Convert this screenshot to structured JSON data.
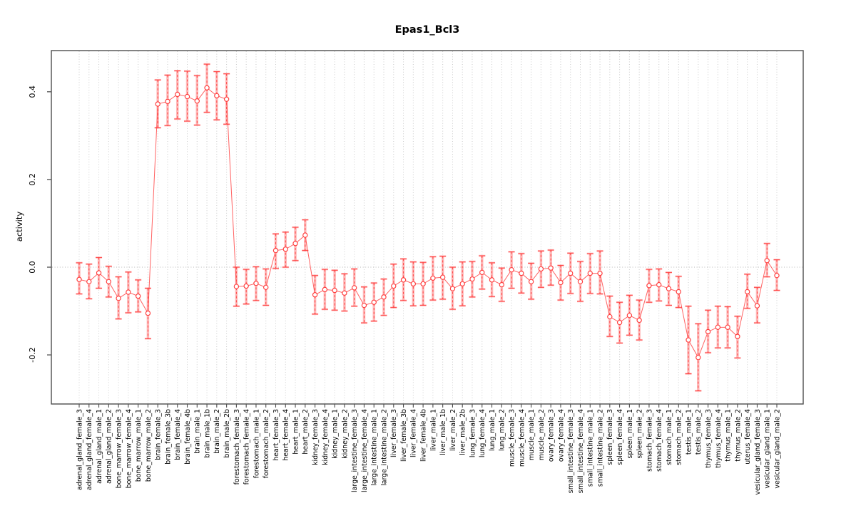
{
  "figure": {
    "title": "Epas1_Bcl3",
    "ylabel": "activity"
  },
  "chart_data": {
    "type": "line",
    "title": "Epas1_Bcl3",
    "xlabel": "",
    "ylabel": "activity",
    "ylim": [
      -0.313,
      0.493
    ],
    "yticks": [
      -0.2,
      0.0,
      0.2,
      0.4
    ],
    "ytick_labels": [
      "-0.2",
      "0.0",
      "0.2",
      "0.4"
    ],
    "grid": "vertical dotted line per category; horizontal dotted line at y=0",
    "legend_position": "none",
    "marker": "open-circle",
    "error_bars": true,
    "colors": {
      "series": "#ff3b3b",
      "error_bar_band": "rgba(255,128,128,0.55)",
      "grid": "#cccccc",
      "zero_line": "#b5b5b5",
      "axis": "#4d4d4d",
      "text": "#000000",
      "background": "#ffffff"
    },
    "categories": [
      "adrenal_gland_female_3",
      "adrenal_gland_female_4",
      "adrenal_gland_male_1",
      "adrenal_gland_male_2",
      "bone_marrow_female_3",
      "bone_marrow_female_4",
      "bone_marrow_male_1",
      "bone_marrow_male_2",
      "brain_female_3",
      "brain_female_3b",
      "brain_female_4",
      "brain_female_4b",
      "brain_male_1",
      "brain_male_1b",
      "brain_male_2",
      "brain_male_2b",
      "forestomach_female_3",
      "forestomach_female_4",
      "forestomach_male_1",
      "forestomach_male_2",
      "heart_female_3",
      "heart_female_4",
      "heart_male_1",
      "heart_male_2",
      "kidney_female_3",
      "kidney_female_4",
      "kidney_male_1",
      "kidney_male_2",
      "large_intestine_female_3",
      "large_intestine_female_4",
      "large_intestine_male_1",
      "large_intestine_male_2",
      "liver_female_3",
      "liver_female_3b",
      "liver_female_4",
      "liver_female_4b",
      "liver_male_1",
      "liver_male_1b",
      "liver_male_2",
      "liver_male_2b",
      "lung_female_3",
      "lung_female_4",
      "lung_male_1",
      "lung_male_2",
      "muscle_female_3",
      "muscle_female_4",
      "muscle_male_1",
      "muscle_male_2",
      "ovary_female_3",
      "ovary_female_4",
      "small_intestine_female_3",
      "small_intestine_female_4",
      "small_intestine_male_1",
      "small_intestine_male_2",
      "spleen_female_3",
      "spleen_female_4",
      "spleen_male_1",
      "spleen_male_2",
      "stomach_female_3",
      "stomach_female_4",
      "stomach_male_1",
      "stomach_male_2",
      "testis_male_1",
      "testis_male_2",
      "thymus_female_3",
      "thymus_female_4",
      "thymus_male_1",
      "thymus_male_2",
      "uterus_female_4",
      "vesicular_gland_female_3",
      "vesicular_gland_male_1",
      "vesicular_gland_male_2"
    ],
    "values": [
      -0.028,
      -0.033,
      -0.013,
      -0.033,
      -0.071,
      -0.057,
      -0.066,
      -0.105,
      0.372,
      0.378,
      0.394,
      0.389,
      0.379,
      0.409,
      0.391,
      0.383,
      -0.044,
      -0.043,
      -0.037,
      -0.046,
      0.038,
      0.041,
      0.054,
      0.073,
      -0.063,
      -0.051,
      -0.053,
      -0.059,
      -0.047,
      -0.087,
      -0.08,
      -0.068,
      -0.043,
      -0.029,
      -0.038,
      -0.038,
      -0.025,
      -0.023,
      -0.049,
      -0.038,
      -0.027,
      -0.012,
      -0.029,
      -0.04,
      -0.006,
      -0.014,
      -0.033,
      -0.004,
      -0.002,
      -0.035,
      -0.014,
      -0.033,
      -0.014,
      -0.014,
      -0.113,
      -0.126,
      -0.11,
      -0.121,
      -0.042,
      -0.04,
      -0.049,
      -0.056,
      -0.166,
      -0.206,
      -0.147,
      -0.137,
      -0.137,
      -0.158,
      -0.056,
      -0.088,
      0.015,
      -0.019
    ],
    "err_low": [
      -0.061,
      -0.072,
      -0.048,
      -0.068,
      -0.118,
      -0.104,
      -0.102,
      -0.163,
      0.318,
      0.323,
      0.338,
      0.333,
      0.324,
      0.353,
      0.336,
      0.326,
      -0.089,
      -0.084,
      -0.076,
      -0.087,
      -0.003,
      0.0,
      0.015,
      0.038,
      -0.107,
      -0.096,
      -0.098,
      -0.1,
      -0.089,
      -0.127,
      -0.123,
      -0.11,
      -0.092,
      -0.076,
      -0.088,
      -0.087,
      -0.075,
      -0.073,
      -0.096,
      -0.088,
      -0.068,
      -0.05,
      -0.067,
      -0.078,
      -0.048,
      -0.059,
      -0.073,
      -0.046,
      -0.041,
      -0.075,
      -0.06,
      -0.078,
      -0.06,
      -0.061,
      -0.158,
      -0.173,
      -0.155,
      -0.166,
      -0.08,
      -0.077,
      -0.087,
      -0.092,
      -0.243,
      -0.282,
      -0.195,
      -0.184,
      -0.184,
      -0.207,
      -0.094,
      -0.127,
      -0.022,
      -0.053
    ],
    "err_high": [
      0.01,
      0.007,
      0.022,
      0.002,
      -0.022,
      -0.011,
      -0.029,
      -0.048,
      0.427,
      0.438,
      0.448,
      0.447,
      0.437,
      0.463,
      0.446,
      0.441,
      0.0,
      -0.005,
      0.001,
      -0.004,
      0.076,
      0.08,
      0.091,
      0.108,
      -0.019,
      -0.005,
      -0.007,
      -0.015,
      -0.004,
      -0.045,
      -0.036,
      -0.027,
      0.007,
      0.019,
      0.012,
      0.011,
      0.024,
      0.025,
      0.0,
      0.012,
      0.013,
      0.026,
      0.01,
      -0.002,
      0.035,
      0.031,
      0.009,
      0.037,
      0.039,
      0.004,
      0.032,
      0.013,
      0.031,
      0.037,
      -0.066,
      -0.08,
      -0.064,
      -0.075,
      -0.005,
      -0.004,
      -0.012,
      -0.021,
      -0.089,
      -0.129,
      -0.098,
      -0.089,
      -0.09,
      -0.112,
      -0.016,
      -0.046,
      0.054,
      0.017
    ]
  }
}
